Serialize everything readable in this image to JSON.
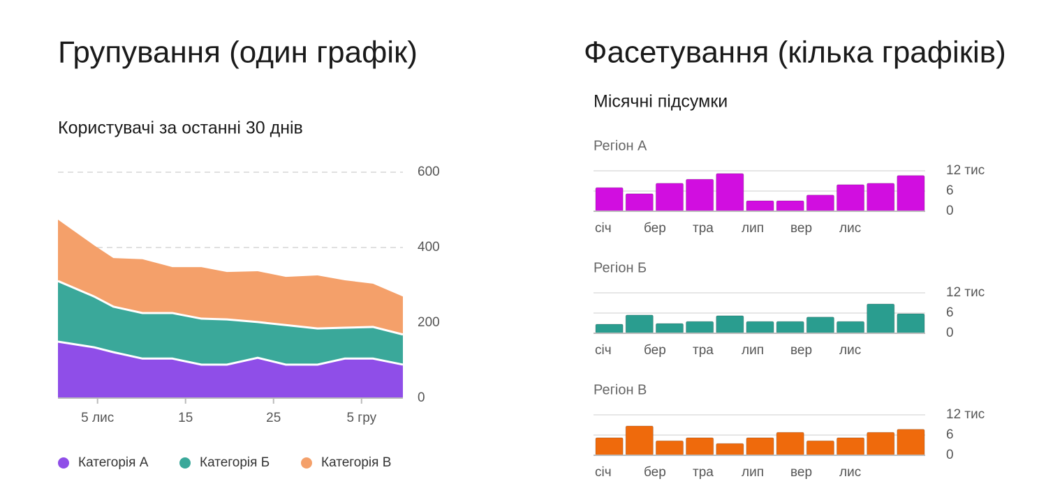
{
  "headings": [
    "Групування (один графік)",
    "Фасетування (кілька графіків)"
  ],
  "facet_title": "Місячні підсумки",
  "chart_data": [
    {
      "type": "area",
      "stacked": true,
      "title": "Користувачі за останні 30 днів",
      "x": [
        0.5,
        4.6,
        6.8,
        10.1,
        13.5,
        16.8,
        19.7,
        23.2,
        26.4,
        30,
        33.1,
        36.3,
        39.7
      ],
      "series": [
        {
          "name": "Категорія А",
          "color": "#8f4ee8",
          "values": [
            150,
            135,
            122,
            105,
            105,
            89,
            89,
            107,
            89,
            89,
            105,
            105,
            89
          ]
        },
        {
          "name": "Категорія Б",
          "color": "#3aa89a",
          "values": [
            161,
            135,
            121,
            121,
            121,
            122,
            120,
            95,
            105,
            96,
            82,
            84,
            80
          ]
        },
        {
          "name": "Категорія В",
          "color": "#f4a06a",
          "values": [
            163,
            136,
            129,
            143,
            122,
            137,
            126,
            135,
            128,
            141,
            126,
            115,
            101
          ]
        }
      ],
      "xlim": [
        0.5,
        39.7
      ],
      "xticks": [
        {
          "value": 5,
          "label": "5 лис"
        },
        15,
        25,
        {
          "value": 35,
          "label": "5 гру"
        }
      ],
      "ylim": [
        0,
        600
      ],
      "yticks": [
        0,
        200,
        400,
        600
      ],
      "grid": true,
      "legend": "bottom"
    },
    {
      "type": "bar",
      "title": "Регіон А",
      "color": "#d10ee0",
      "values": [
        7.0,
        5.2,
        8.3,
        9.5,
        11.2,
        3.1,
        3.1,
        4.8,
        7.9,
        8.3,
        10.6
      ],
      "xtick_labels": [
        "січ",
        "бер",
        "тра",
        "лип",
        "вер",
        "лис"
      ],
      "ylim": [
        0,
        12
      ],
      "yticks": [
        0,
        6,
        {
          "value": 12,
          "label": "12 тис"
        }
      ]
    },
    {
      "type": "bar",
      "title": "Регіон Б",
      "color": "#2a9d8f",
      "values": [
        2.7,
        5.4,
        2.9,
        3.5,
        5.2,
        3.5,
        3.5,
        4.8,
        3.5,
        8.7,
        5.8
      ],
      "xtick_labels": [
        "січ",
        "бер",
        "тра",
        "лип",
        "вер",
        "лис"
      ],
      "ylim": [
        0,
        12
      ],
      "yticks": [
        0,
        6,
        {
          "value": 12,
          "label": "12 тис"
        }
      ]
    },
    {
      "type": "bar",
      "title": "Регіон В",
      "color": "#ef6a0c",
      "values": [
        5.2,
        8.7,
        4.3,
        5.2,
        3.5,
        5.2,
        6.8,
        4.3,
        5.2,
        6.8,
        7.7
      ],
      "xtick_labels": [
        "січ",
        "бер",
        "тра",
        "лип",
        "вер",
        "лис"
      ],
      "ylim": [
        0,
        12
      ],
      "yticks": [
        0,
        6,
        {
          "value": 12,
          "label": "12 тис"
        }
      ]
    }
  ]
}
